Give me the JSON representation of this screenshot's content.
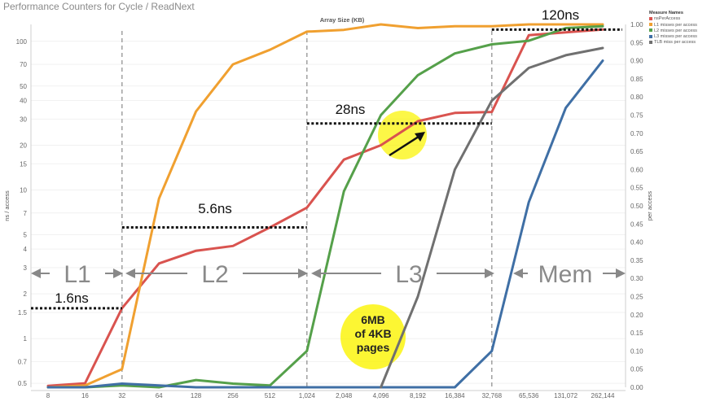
{
  "chart_data": {
    "type": "line",
    "title": "Performance Counters for Cycle / ReadNext",
    "xlabel": "Array Size (KB)",
    "ylabel_left": "ns / access",
    "ylabel_right": "per access",
    "x_scale": "log2",
    "y_left_scale": "log",
    "y_left_range": [
      0.47,
      130
    ],
    "y_right_range": [
      0,
      1.0
    ],
    "categories": [
      "8",
      "16",
      "32",
      "64",
      "128",
      "256",
      "512",
      "1,024",
      "2,048",
      "4,096",
      "8,192",
      "16,384",
      "32,768",
      "65,536",
      "131,072",
      "262,144"
    ],
    "y_left_ticks": [
      "0.5",
      "0.7",
      "1",
      "1.5",
      "2",
      "3",
      "4",
      "5",
      "7",
      "10",
      "15",
      "20",
      "30",
      "40",
      "50",
      "70",
      "100"
    ],
    "y_right_ticks": [
      "0.00",
      "0.05",
      "0.10",
      "0.15",
      "0.20",
      "0.25",
      "0.30",
      "0.35",
      "0.40",
      "0.45",
      "0.50",
      "0.55",
      "0.60",
      "0.65",
      "0.70",
      "0.75",
      "0.80",
      "0.85",
      "0.90",
      "0.95",
      "1.00"
    ],
    "grid": true,
    "legend_position": "top-right",
    "legend_title": "Measure Names",
    "series": [
      {
        "name": "nsPerAccess",
        "axis": "left",
        "color": "#d9534f",
        "values": [
          0.48,
          0.5,
          1.6,
          3.2,
          3.9,
          4.2,
          5.6,
          7.6,
          16,
          20,
          29,
          33,
          33.5,
          110,
          115,
          120
        ]
      },
      {
        "name": "L1 misses per access",
        "axis": "right",
        "color": "#f0a030",
        "values": [
          0.0,
          0.005,
          0.05,
          0.52,
          0.76,
          0.89,
          0.93,
          0.98,
          0.985,
          1.0,
          0.99,
          0.995,
          0.995,
          1.0,
          1.0,
          1.0
        ]
      },
      {
        "name": "L2 misses per access",
        "axis": "right",
        "color": "#55a04a",
        "values": [
          0.0,
          0.0,
          0.005,
          0.0,
          0.02,
          0.01,
          0.005,
          0.1,
          0.54,
          0.75,
          0.86,
          0.92,
          0.945,
          0.955,
          0.99,
          0.995
        ]
      },
      {
        "name": "L3 misses per access",
        "axis": "right",
        "color": "#3f6fa5",
        "values": [
          0.0,
          0.0,
          0.01,
          0.005,
          0.0,
          0.0,
          0.0,
          0.0,
          0.0,
          0.0,
          0.0,
          0.0,
          0.1,
          0.51,
          0.77,
          0.9
        ]
      },
      {
        "name": "TLB miss per access",
        "axis": "right",
        "color": "#707070",
        "values": [
          null,
          null,
          null,
          null,
          null,
          null,
          null,
          null,
          null,
          0.0,
          0.25,
          0.6,
          0.79,
          0.88,
          0.915,
          0.935
        ]
      }
    ],
    "annotations": {
      "regions": [
        "L1",
        "L2",
        "L3",
        "Mem"
      ],
      "latencies": [
        {
          "label": "1.6ns",
          "value": 1.6,
          "from": "8",
          "to": "32"
        },
        {
          "label": "5.6ns",
          "value": 5.6,
          "from": "32",
          "to": "1,024"
        },
        {
          "label": "28ns",
          "value": 28,
          "from": "1,024",
          "to": "32,768"
        },
        {
          "label": "120ns",
          "value": 120,
          "from": "32,768",
          "to": "262,144"
        }
      ],
      "boundaries": [
        "32",
        "1,024",
        "32,768"
      ],
      "callout": [
        "6MB",
        "of 4KB",
        "pages"
      ]
    }
  }
}
